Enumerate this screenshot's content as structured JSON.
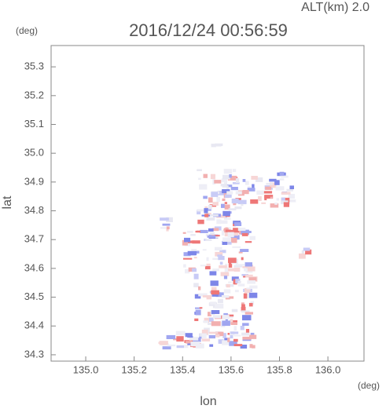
{
  "chart_data": {
    "type": "map",
    "title": "2016/12/24 00:56:59",
    "subtitle": "ALT(km)  2.0",
    "y_unit": "(deg)",
    "x_unit": "(deg)",
    "x_label": "lon",
    "y_label": "lat",
    "xlim": [
      134.857,
      136.149
    ],
    "ylim": [
      34.278,
      35.374
    ],
    "xticks": [
      {
        "value": 135.0,
        "label": "135.0"
      },
      135.2,
      135.4,
      135.6,
      135.8,
      {
        "value": 136.0,
        "label": "136.0"
      }
    ],
    "yticks": [
      34.3,
      34.4,
      34.5,
      34.6,
      34.7,
      34.8,
      34.9,
      {
        "value": 35.0,
        "label": "35.0"
      },
      35.1,
      35.2,
      35.3
    ]
  }
}
